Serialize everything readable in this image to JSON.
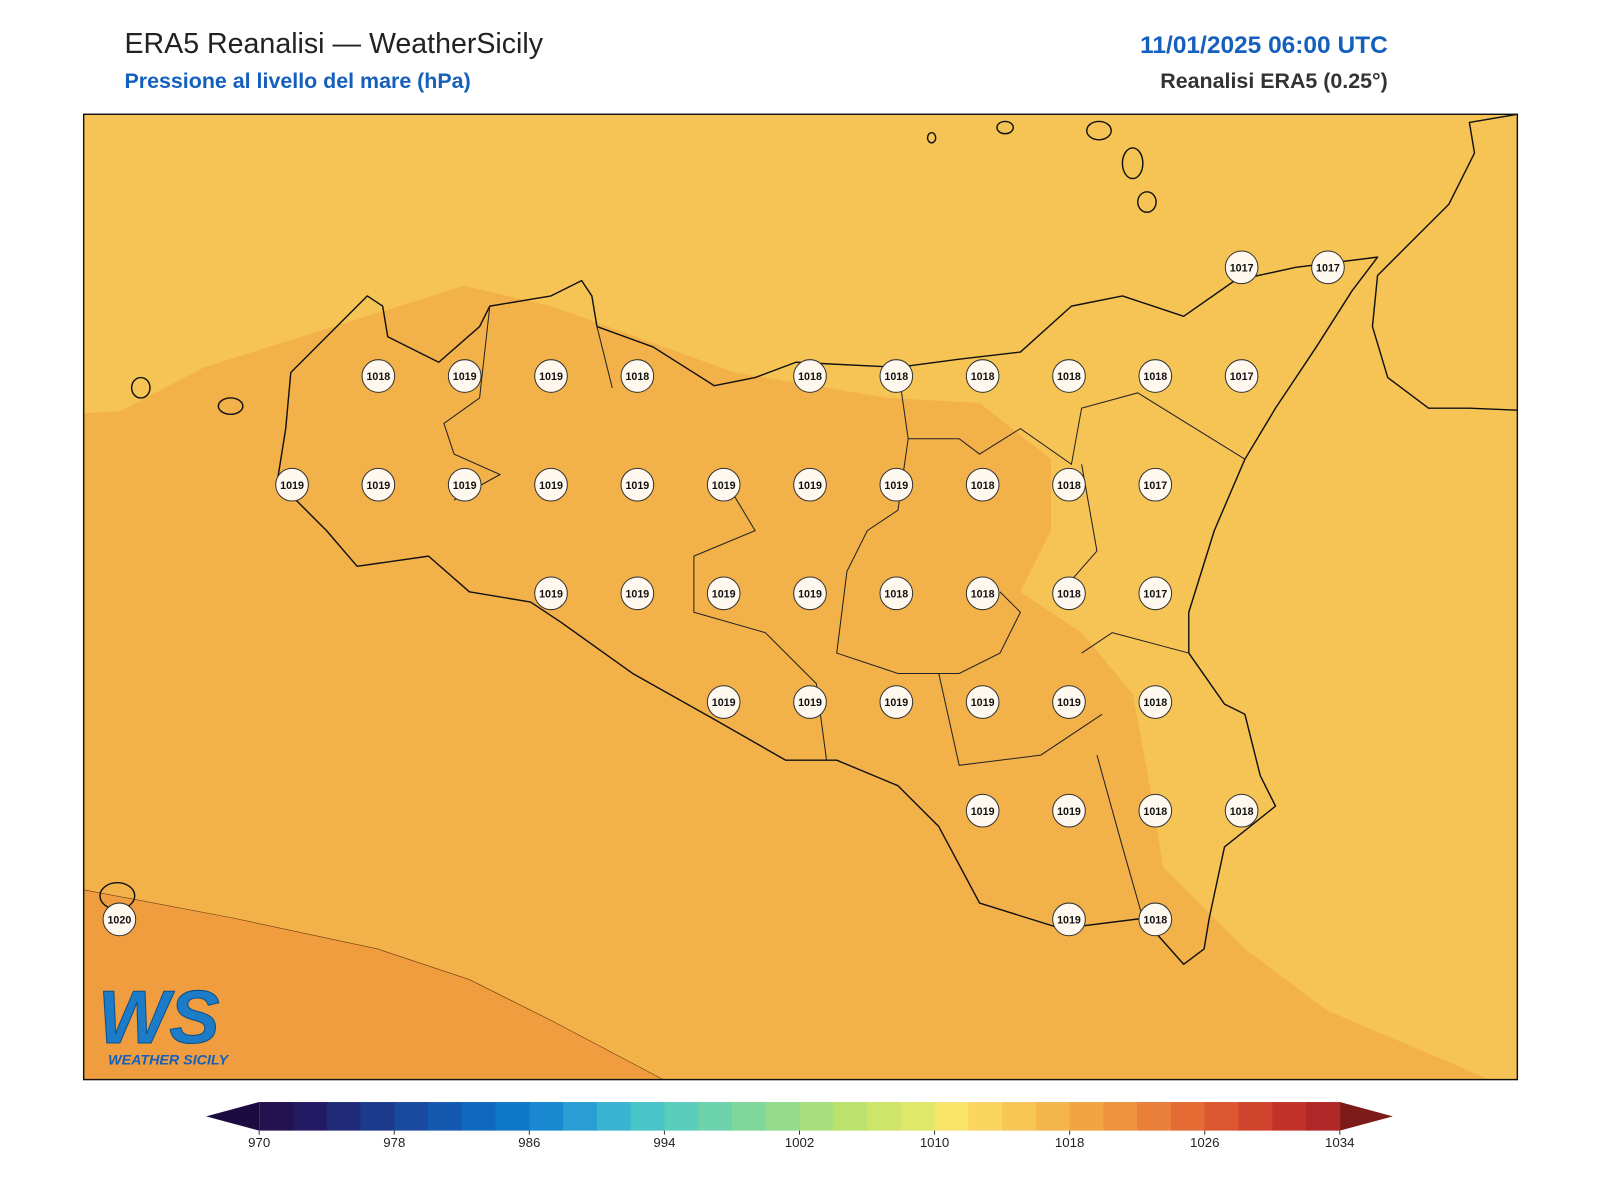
{
  "header": {
    "title": "ERA5 Reanalisi — WeatherSicily",
    "subtitle": "Pressione al livello del mare (hPa)",
    "datetime": "11/01/2025 06:00 UTC",
    "source": "Reanalisi ERA5 (0.25°)"
  },
  "map": {
    "stations": [
      1017,
      1017,
      1018,
      1019,
      1019,
      1018,
      1018,
      1018,
      1018,
      1018,
      1018,
      1017,
      1019,
      1019,
      1019,
      1019,
      1019,
      1019,
      1019,
      1019,
      1018,
      1018,
      1017,
      1019,
      1019,
      1019,
      1019,
      1018,
      1018,
      1018,
      1017,
      1019,
      1019,
      1019,
      1019,
      1019,
      1018,
      1019,
      1019,
      1018,
      1018,
      1020,
      1019,
      1018
    ]
  },
  "logo": {
    "mark": "WS",
    "name": "WEATHER SICILY"
  },
  "colorbar": {
    "lim": [
      970,
      1034
    ],
    "ticks": [
      970,
      978,
      986,
      994,
      1002,
      1010,
      1018,
      1026,
      1034
    ],
    "colors": [
      "#23124f",
      "#231a63",
      "#1f2a78",
      "#1c3a8c",
      "#1a4aa0",
      "#1558b0",
      "#1068c0",
      "#0d78c8",
      "#1a88d0",
      "#2a9ed2",
      "#38b4d0",
      "#48c4c8",
      "#5acdbd",
      "#6dd3ad",
      "#80d79c",
      "#95db8c",
      "#a8df7c",
      "#bce26e",
      "#cfe56a",
      "#dfe86a",
      "#f9e46a",
      "#fbd560",
      "#f8c655",
      "#f4b54b",
      "#f1a444",
      "#ee923e",
      "#ea7f39",
      "#e46b34",
      "#dc5630",
      "#d0432c",
      "#c23229",
      "#b02727"
    ],
    "under": "#1c0b40",
    "over": "#7d1a1a"
  }
}
